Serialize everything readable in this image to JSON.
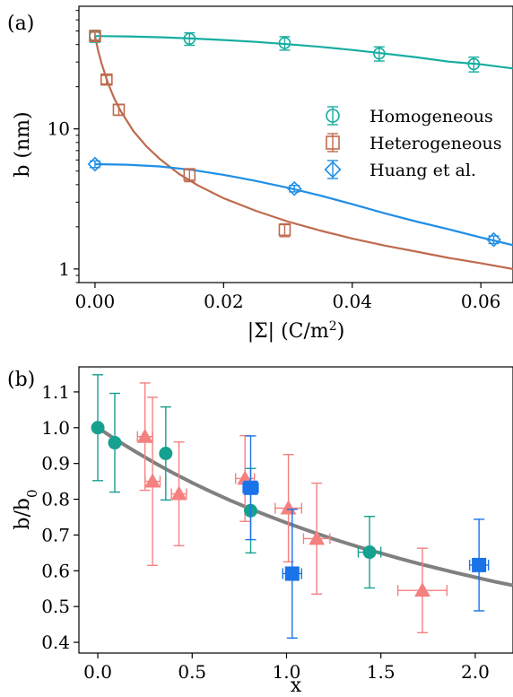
{
  "colors": {
    "homogeneous": "#17ada0",
    "heterogeneous": "#bf6a4e",
    "huang": "#1f8ee6",
    "teal_points": "#16a08f",
    "salmon_points": "#f58080",
    "blue_points": "#1a73e8",
    "fit_gray": "#808080"
  },
  "chart_data": [
    {
      "type": "scatter",
      "panel_label": "(a)",
      "xlabel": "|Σ| (C/m",
      "xlabel_sup": "2",
      "xlabel_end": ")",
      "ylabel": "b (nm)",
      "yscale": "log",
      "xlim": [
        -0.0025,
        0.065
      ],
      "ylim": [
        0.8,
        75
      ],
      "xticks": [
        0.0,
        0.02,
        0.04,
        0.06
      ],
      "xtick_labels": [
        "0.00",
        "0.02",
        "0.04",
        "0.06"
      ],
      "yticks": [
        1,
        10
      ],
      "ytick_labels": [
        "1",
        "10"
      ],
      "legend_position": "right",
      "series": [
        {
          "name": "Homogeneous",
          "marker": "circle",
          "x": [
            0.0,
            0.0147,
            0.0295,
            0.0442,
            0.0589
          ],
          "y": [
            46,
            44,
            41,
            34.5,
            29
          ],
          "yerr": [
            4.5,
            4.5,
            4.5,
            4,
            3.5
          ],
          "fit_x": [
            0,
            0.005,
            0.01,
            0.015,
            0.02,
            0.025,
            0.03,
            0.035,
            0.04,
            0.045,
            0.05,
            0.055,
            0.06,
            0.065
          ],
          "fit_y": [
            46,
            45.7,
            45.1,
            44.2,
            43.1,
            41.8,
            40.2,
            38.5,
            36.6,
            34.5,
            32.4,
            30.2,
            28.9,
            27
          ]
        },
        {
          "name": "Heterogeneous",
          "marker": "square",
          "x": [
            0.0,
            0.0018,
            0.0037,
            0.0147,
            0.0295
          ],
          "y": [
            46,
            22.5,
            13.7,
            4.7,
            1.9
          ],
          "yerr": [
            3,
            1.6,
            1.2,
            0.5,
            0.2
          ],
          "fit_x": [
            0,
            0.0005,
            0.001,
            0.002,
            0.003,
            0.004,
            0.006,
            0.008,
            0.01,
            0.013,
            0.016,
            0.02,
            0.025,
            0.03,
            0.035,
            0.04,
            0.045,
            0.05,
            0.055,
            0.06,
            0.065
          ],
          "fit_y": [
            46,
            36,
            29.5,
            21.3,
            16.5,
            13.4,
            9.6,
            7.5,
            6.15,
            4.8,
            3.95,
            3.2,
            2.6,
            2.18,
            1.88,
            1.65,
            1.47,
            1.33,
            1.2,
            1.1,
            1.0
          ]
        },
        {
          "name": "Huang et al.",
          "marker": "diamond",
          "x": [
            0.0,
            0.031,
            0.062
          ],
          "y": [
            5.6,
            3.75,
            1.62
          ],
          "yerr": [
            0.3,
            0.2,
            0.1
          ],
          "fit_x": [
            0,
            0.005,
            0.01,
            0.015,
            0.02,
            0.025,
            0.03,
            0.035,
            0.04,
            0.045,
            0.05,
            0.055,
            0.06,
            0.065
          ],
          "fit_y": [
            5.6,
            5.55,
            5.4,
            5.1,
            4.7,
            4.25,
            3.8,
            3.35,
            2.9,
            2.5,
            2.18,
            1.92,
            1.68,
            1.48
          ]
        }
      ]
    },
    {
      "type": "scatter",
      "panel_label": "(b)",
      "xlabel": "x",
      "ylabel": "b/b",
      "ylabel_sub": "0",
      "xlim": [
        -0.1,
        2.2
      ],
      "ylim": [
        0.37,
        1.17
      ],
      "xticks": [
        0.0,
        0.5,
        1.0,
        1.5,
        2.0
      ],
      "xtick_labels": [
        "0.0",
        "0.5",
        "1.0",
        "1.5",
        "2.0"
      ],
      "yticks": [
        0.4,
        0.5,
        0.6,
        0.7,
        0.8,
        0.9,
        1.0,
        1.1
      ],
      "ytick_labels": [
        "0.4",
        "0.5",
        "0.6",
        "0.7",
        "0.8",
        "0.9",
        "1.0",
        "1.1"
      ],
      "series": [
        {
          "marker": "circle",
          "x": [
            0.0,
            0.09,
            0.36,
            0.81,
            1.44
          ],
          "y": [
            1.0,
            0.958,
            0.928,
            0.768,
            0.652
          ],
          "yerr": [
            0.148,
            0.138,
            0.13,
            0.118,
            0.1
          ],
          "xerr": [
            0,
            0,
            0,
            0,
            0.06
          ]
        },
        {
          "marker": "triangle",
          "x": [
            0.25,
            0.29,
            0.43,
            0.78,
            1.01,
            1.16,
            1.72
          ],
          "y": [
            0.975,
            0.85,
            0.815,
            0.858,
            0.775,
            0.69,
            0.545
          ],
          "yerr": [
            0.15,
            0.235,
            0.145,
            0.12,
            0.15,
            0.155,
            0.118
          ],
          "xerr": [
            0.04,
            0.04,
            0.04,
            0.05,
            0.07,
            0.07,
            0.13
          ]
        },
        {
          "marker": "square",
          "x": [
            0.81,
            1.03,
            2.02
          ],
          "y": [
            0.832,
            0.592,
            0.616
          ],
          "yerr": [
            0.145,
            0.18,
            0.128
          ],
          "xerr": [
            0.04,
            0.05,
            0.05
          ]
        }
      ],
      "fit": {
        "x": [
          0,
          0.1,
          0.2,
          0.3,
          0.4,
          0.5,
          0.6,
          0.7,
          0.8,
          0.9,
          1.0,
          1.1,
          1.2,
          1.3,
          1.4,
          1.5,
          1.6,
          1.7,
          1.8,
          1.9,
          2.0,
          2.1,
          2.2
        ],
        "y": [
          1.0,
          0.965,
          0.933,
          0.902,
          0.873,
          0.846,
          0.821,
          0.797,
          0.775,
          0.754,
          0.734,
          0.715,
          0.697,
          0.68,
          0.664,
          0.649,
          0.634,
          0.62,
          0.607,
          0.594,
          0.582,
          0.57,
          0.559
        ]
      }
    }
  ]
}
